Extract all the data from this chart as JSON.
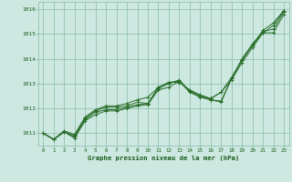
{
  "background_color": "#cce8e0",
  "grid_color": "#88bba8",
  "line_color": "#2a6e2a",
  "marker_color": "#2a6e2a",
  "text_color": "#1a5c1a",
  "xlabel": "Graphe pression niveau de la mer (hPa)",
  "xlim": [
    -0.5,
    23.5
  ],
  "ylim": [
    1010.5,
    1016.3
  ],
  "yticks": [
    1011,
    1012,
    1013,
    1014,
    1015,
    1016
  ],
  "xticks": [
    0,
    1,
    2,
    3,
    4,
    5,
    6,
    7,
    8,
    9,
    10,
    11,
    12,
    13,
    14,
    15,
    16,
    17,
    18,
    19,
    20,
    21,
    22,
    23
  ],
  "series": [
    [
      1011.0,
      1010.75,
      1011.05,
      1010.8,
      1011.5,
      1011.75,
      1011.9,
      1011.9,
      1012.0,
      1012.1,
      1012.15,
      1012.75,
      1012.85,
      1013.1,
      1012.65,
      1012.45,
      1012.35,
      1012.25,
      1013.2,
      1013.95,
      1014.55,
      1015.05,
      1015.05,
      1015.8
    ],
    [
      1011.0,
      1010.75,
      1011.05,
      1010.85,
      1011.55,
      1011.85,
      1011.95,
      1011.95,
      1012.05,
      1012.15,
      1012.2,
      1012.8,
      1013.0,
      1013.15,
      1012.7,
      1012.5,
      1012.35,
      1012.3,
      1013.2,
      1014.0,
      1014.6,
      1015.1,
      1015.2,
      1015.9
    ],
    [
      1011.0,
      1010.75,
      1011.05,
      1010.9,
      1011.6,
      1011.9,
      1012.05,
      1012.05,
      1012.1,
      1012.25,
      1012.2,
      1012.85,
      1013.05,
      1013.1,
      1012.7,
      1012.5,
      1012.4,
      1012.65,
      1013.25,
      1013.95,
      1014.55,
      1015.15,
      1015.45,
      1015.95
    ],
    [
      1011.0,
      1010.75,
      1011.1,
      1010.95,
      1011.65,
      1011.95,
      1012.1,
      1012.1,
      1012.2,
      1012.35,
      1012.45,
      1012.85,
      1013.05,
      1013.05,
      1012.75,
      1012.55,
      1012.4,
      1012.65,
      1013.15,
      1013.85,
      1014.45,
      1015.05,
      1015.35,
      1015.95
    ]
  ]
}
